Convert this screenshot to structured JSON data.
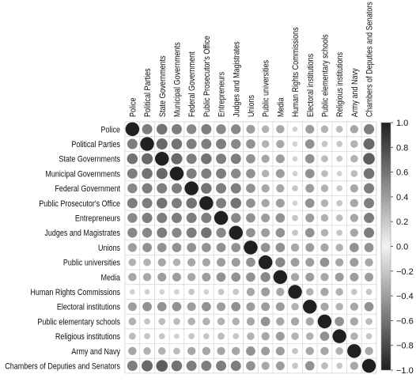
{
  "chart_data": {
    "type": "heatmap",
    "style": "circle correlation matrix (corrplot), circle size and grayscale encode correlation",
    "variables": [
      "Police",
      "Political Parties",
      "State Governments",
      "Municipal Governments",
      "Federal Government",
      "Public Prosecutor's Office",
      "Entrepreneurs",
      "Judges and Magistrates",
      "Unions",
      "Public universities",
      "Media",
      "Human Rights Commissions",
      "Electoral institutions",
      "Public elementary schools",
      "Religious institutions",
      "Army and Navy",
      "Chambers of Deputies and Senators"
    ],
    "matrix": [
      [
        1.0,
        0.55,
        0.6,
        0.55,
        0.5,
        0.55,
        0.5,
        0.5,
        0.4,
        0.3,
        0.35,
        0.15,
        0.4,
        0.3,
        0.25,
        0.35,
        0.55
      ],
      [
        0.55,
        1.0,
        0.65,
        0.6,
        0.55,
        0.55,
        0.55,
        0.5,
        0.45,
        0.3,
        0.35,
        0.15,
        0.45,
        0.2,
        0.2,
        0.3,
        0.65
      ],
      [
        0.6,
        0.65,
        1.0,
        0.65,
        0.55,
        0.6,
        0.55,
        0.55,
        0.45,
        0.35,
        0.4,
        0.15,
        0.45,
        0.25,
        0.2,
        0.3,
        0.7
      ],
      [
        0.55,
        0.6,
        0.65,
        1.0,
        0.55,
        0.55,
        0.55,
        0.5,
        0.45,
        0.3,
        0.4,
        0.15,
        0.45,
        0.25,
        0.15,
        0.25,
        0.6
      ],
      [
        0.5,
        0.55,
        0.55,
        0.55,
        1.0,
        0.6,
        0.55,
        0.55,
        0.45,
        0.35,
        0.35,
        0.2,
        0.4,
        0.3,
        0.2,
        0.35,
        0.55
      ],
      [
        0.55,
        0.55,
        0.6,
        0.55,
        0.6,
        1.0,
        0.55,
        0.6,
        0.45,
        0.35,
        0.4,
        0.15,
        0.45,
        0.3,
        0.2,
        0.35,
        0.55
      ],
      [
        0.5,
        0.55,
        0.55,
        0.55,
        0.55,
        0.55,
        1.0,
        0.5,
        0.45,
        0.4,
        0.45,
        0.2,
        0.4,
        0.3,
        0.25,
        0.35,
        0.55
      ],
      [
        0.5,
        0.5,
        0.55,
        0.5,
        0.55,
        0.6,
        0.5,
        1.0,
        0.45,
        0.4,
        0.45,
        0.2,
        0.45,
        0.3,
        0.2,
        0.35,
        0.55
      ],
      [
        0.4,
        0.45,
        0.45,
        0.45,
        0.45,
        0.45,
        0.45,
        0.45,
        1.0,
        0.45,
        0.45,
        0.35,
        0.4,
        0.35,
        0.3,
        0.45,
        0.45
      ],
      [
        0.3,
        0.3,
        0.35,
        0.3,
        0.35,
        0.35,
        0.4,
        0.4,
        0.45,
        1.0,
        0.5,
        0.4,
        0.4,
        0.45,
        0.35,
        0.4,
        0.35
      ],
      [
        0.35,
        0.35,
        0.4,
        0.4,
        0.35,
        0.4,
        0.45,
        0.45,
        0.45,
        0.5,
        1.0,
        0.35,
        0.4,
        0.35,
        0.4,
        0.4,
        0.4
      ],
      [
        0.15,
        0.15,
        0.15,
        0.15,
        0.2,
        0.15,
        0.2,
        0.2,
        0.35,
        0.4,
        0.35,
        1.0,
        0.3,
        0.35,
        0.3,
        0.2,
        0.2
      ],
      [
        0.4,
        0.45,
        0.45,
        0.45,
        0.4,
        0.45,
        0.4,
        0.45,
        0.4,
        0.4,
        0.4,
        0.3,
        1.0,
        0.35,
        0.3,
        0.35,
        0.45
      ],
      [
        0.3,
        0.2,
        0.25,
        0.25,
        0.3,
        0.3,
        0.3,
        0.3,
        0.35,
        0.45,
        0.35,
        0.35,
        0.35,
        1.0,
        0.45,
        0.35,
        0.25
      ],
      [
        0.25,
        0.2,
        0.2,
        0.15,
        0.2,
        0.2,
        0.25,
        0.2,
        0.3,
        0.35,
        0.4,
        0.3,
        0.3,
        0.45,
        1.0,
        0.3,
        0.2
      ],
      [
        0.35,
        0.3,
        0.3,
        0.25,
        0.35,
        0.35,
        0.35,
        0.35,
        0.45,
        0.4,
        0.4,
        0.2,
        0.35,
        0.35,
        0.3,
        1.0,
        0.35
      ],
      [
        0.55,
        0.65,
        0.7,
        0.6,
        0.55,
        0.55,
        0.55,
        0.55,
        0.45,
        0.35,
        0.4,
        0.2,
        0.45,
        0.25,
        0.2,
        0.35,
        1.0
      ]
    ],
    "colorbar": {
      "range": [
        -1.0,
        1.0
      ],
      "ticks": [
        "1.0",
        "0.8",
        "0.6",
        "0.4",
        "0.2",
        "0.0",
        "−0.2",
        "−0.4",
        "−0.6",
        "−0.8",
        "−1.0"
      ],
      "colors": {
        "high": "#1f1f1f",
        "mid": "#f2f2f2",
        "low": "#1f1f1f"
      }
    },
    "grid": true,
    "legend": "right"
  }
}
